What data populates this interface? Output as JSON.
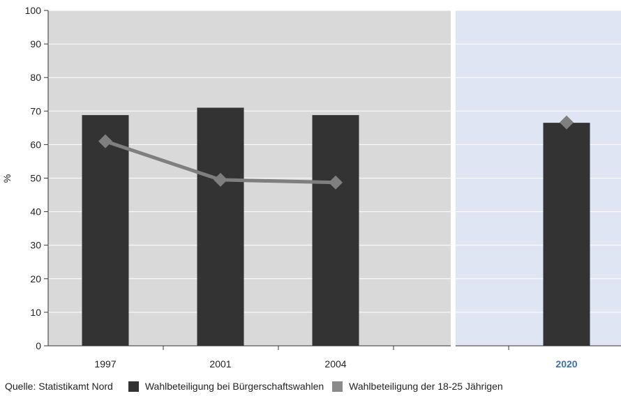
{
  "chart_data": {
    "type": "bar",
    "ylabel": "%",
    "ylim": [
      0,
      100
    ],
    "yticks": [
      0,
      10,
      20,
      30,
      40,
      50,
      60,
      70,
      80,
      90,
      100
    ],
    "grid": true,
    "panels": [
      {
        "categories": [
          "1997",
          "2001",
          "2004",
          ""
        ],
        "background": "#d9d9d9"
      },
      {
        "categories": [
          "",
          "2020"
        ],
        "background": "#dfe5f3",
        "highlight_label": true
      }
    ],
    "categories": [
      "1997",
      "2001",
      "2004",
      "2020"
    ],
    "series": [
      {
        "name": "Wahlbeteiligung bei Bürgerschaftswahlen",
        "kind": "bar",
        "color": "#333333",
        "values": [
          68.8,
          71,
          68.8,
          66.5
        ]
      },
      {
        "name": "Wahlbeteiligung der 18-25 Jährigen",
        "kind": "line",
        "color": "#7f7f7f",
        "values": [
          61,
          49.5,
          48.7,
          66.6
        ]
      }
    ]
  },
  "source": "Quelle: Statistikamt Nord",
  "colors": {
    "highlight": "#3b6fb0",
    "grid": "#ffffff",
    "axis": "#333333"
  }
}
